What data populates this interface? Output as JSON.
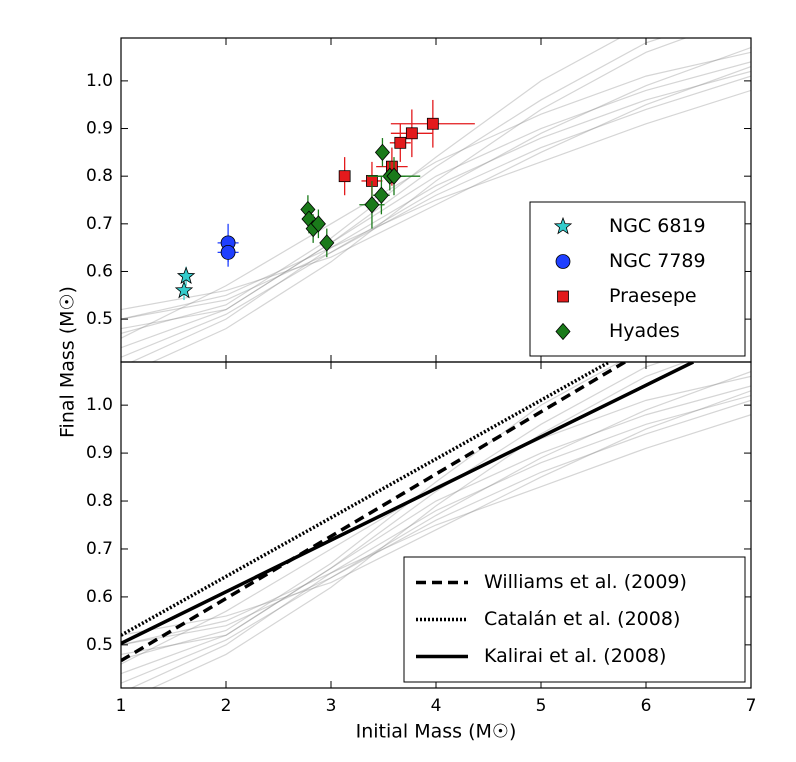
{
  "chart_data": [
    {
      "type": "scatter",
      "xlim": [
        1,
        7
      ],
      "ylim": [
        0.41,
        1.09
      ],
      "yticks": [
        0.5,
        0.6,
        0.7,
        0.8,
        0.9,
        {
          "value": 1,
          "label": "1.0"
        }
      ],
      "legend": "lower right",
      "track_x": [
        1,
        2,
        3,
        4,
        5,
        6,
        7
      ],
      "tracks": [
        [
          0.5,
          0.54,
          0.64,
          0.76,
          0.86,
          0.94,
          1.01
        ],
        [
          0.48,
          0.52,
          0.66,
          0.8,
          0.9,
          0.98,
          1.04
        ],
        [
          0.44,
          0.52,
          0.66,
          0.82,
          0.96,
          1.08,
          1.15
        ],
        [
          0.4,
          0.5,
          0.65,
          0.78,
          0.88,
          0.96,
          1.02
        ],
        [
          0.52,
          0.56,
          0.63,
          0.74,
          0.85,
          0.95,
          1.03
        ],
        [
          0.38,
          0.48,
          0.62,
          0.79,
          0.94,
          1.06,
          1.14
        ],
        [
          0.47,
          0.53,
          0.67,
          0.84,
          1.0,
          1.12,
          1.2
        ],
        [
          0.5,
          0.55,
          0.65,
          0.75,
          0.83,
          0.91,
          0.98
        ],
        [
          0.42,
          0.51,
          0.64,
          0.77,
          0.89,
          0.99,
          1.07
        ],
        [
          0.46,
          0.57,
          0.7,
          0.83,
          0.93,
          1.01,
          1.06
        ]
      ],
      "series": [
        {
          "name": "NGC 6819",
          "color": "#33cccc",
          "marker": "star",
          "x": [
            1.6,
            1.62
          ],
          "values": [
            0.56,
            0.59
          ],
          "xerr": [
            0.05,
            0.05
          ],
          "yerr": [
            0.02,
            0.02
          ]
        },
        {
          "name": "NGC 7789",
          "color": "#1f3fff",
          "marker": "circle",
          "x": [
            2.02,
            2.02
          ],
          "values": [
            0.66,
            0.64
          ],
          "xerr": [
            0.1,
            0.1
          ],
          "yerr": [
            0.04,
            0.03
          ]
        },
        {
          "name": "Praesepe",
          "color": "#e31a1c",
          "marker": "square",
          "x": [
            3.13,
            3.39,
            3.58,
            3.66,
            3.77,
            3.97
          ],
          "values": [
            0.8,
            0.79,
            0.82,
            0.87,
            0.89,
            0.91
          ],
          "xerr": [
            0.05,
            0.1,
            0.15,
            0.1,
            0.2,
            0.4
          ],
          "yerr": [
            0.04,
            0.04,
            0.04,
            0.04,
            0.05,
            0.05
          ]
        },
        {
          "name": "Hyades",
          "color": "#1a7a1a",
          "marker": "diamond",
          "x": [
            2.78,
            2.79,
            2.83,
            2.88,
            2.96,
            3.39,
            3.48,
            3.49,
            3.56,
            3.6
          ],
          "values": [
            0.73,
            0.71,
            0.69,
            0.7,
            0.66,
            0.74,
            0.76,
            0.85,
            0.8,
            0.8
          ],
          "xerr": [
            0.03,
            0.03,
            0.05,
            0.05,
            0.05,
            0.12,
            0.08,
            0.05,
            0.15,
            0.25
          ],
          "yerr": [
            0.03,
            0.03,
            0.03,
            0.03,
            0.03,
            0.05,
            0.04,
            0.03,
            0.03,
            0.04
          ]
        }
      ]
    },
    {
      "type": "line",
      "xlim": [
        1,
        7
      ],
      "ylim": [
        0.41,
        1.09
      ],
      "xticks": [
        1,
        2,
        3,
        4,
        5,
        6,
        7
      ],
      "yticks": [
        0.5,
        0.6,
        0.7,
        0.8,
        0.9,
        {
          "value": 1,
          "label": "1.0"
        }
      ],
      "xlabel": "Initial Mass (M☉)",
      "ylabel": "Final Mass (M☉)",
      "legend": "lower right",
      "series": [
        {
          "name": "Williams et al. (2009)",
          "color": "#000000",
          "style": "dashed",
          "x": [
            1,
            5.8
          ],
          "values": [
            0.467,
            1.09
          ]
        },
        {
          "name": "Catalán et al. (2008)",
          "color": "#000000",
          "style": "dotted",
          "x": [
            1,
            5.65
          ],
          "values": [
            0.52,
            1.09
          ]
        },
        {
          "name": "Kalirai et al. (2008)",
          "color": "#000000",
          "style": "solid",
          "x": [
            1,
            6.45
          ],
          "values": [
            0.503,
            1.09
          ]
        }
      ]
    }
  ]
}
